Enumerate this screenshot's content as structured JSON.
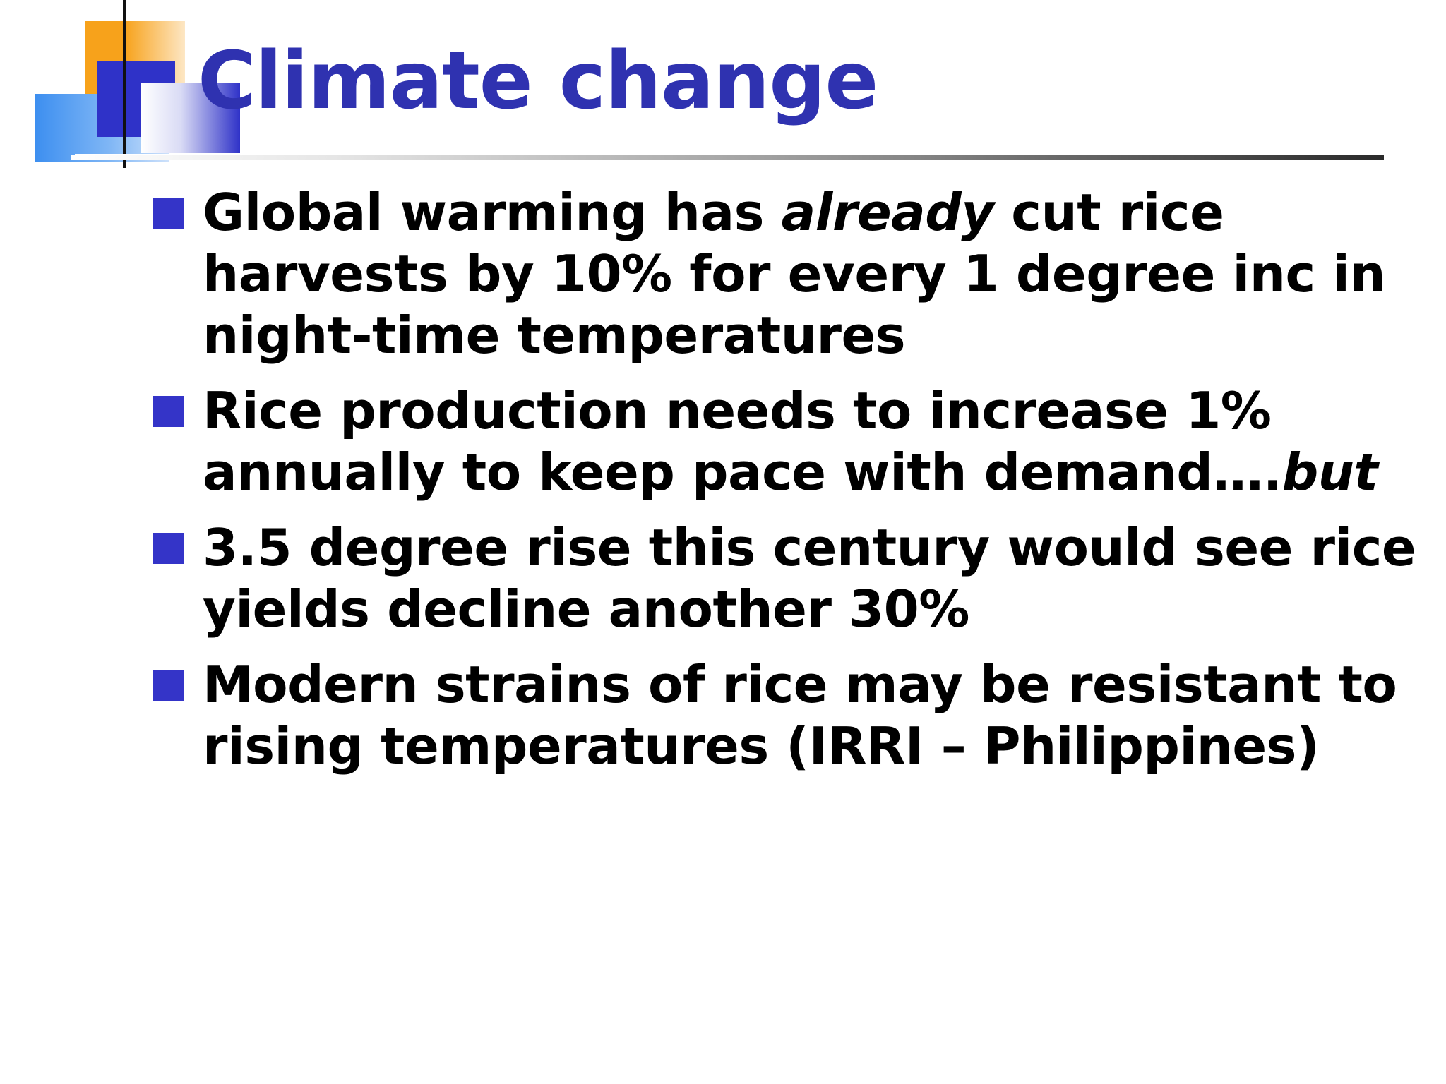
{
  "slide": {
    "title": "Climate change",
    "bullets": [
      {
        "segments": [
          {
            "text": "Global warming has ",
            "style": "normal"
          },
          {
            "text": "already",
            "style": "italic"
          },
          {
            "text": " cut rice harvests by 10% for every 1 degree inc in night-time temperatures",
            "style": "normal"
          }
        ]
      },
      {
        "segments": [
          {
            "text": "Rice production needs to increase 1% annually to keep pace with demand….",
            "style": "normal"
          },
          {
            "text": "but",
            "style": "italic"
          }
        ]
      },
      {
        "segments": [
          {
            "text": "3.5 degree rise this century would see rice yields decline another 30%",
            "style": "normal"
          }
        ]
      },
      {
        "segments": [
          {
            "text": "Modern strains of rice may be resistant to rising temperatures (IRRI – Philippines)",
            "style": "normal"
          }
        ]
      }
    ]
  },
  "theme": {
    "title_color": "#2f32b0",
    "bullet_marker_color": "#3434c8",
    "text_color": "#000000",
    "accent_orange": "#f7a21b",
    "accent_lightblue": "#3d8ff0"
  }
}
